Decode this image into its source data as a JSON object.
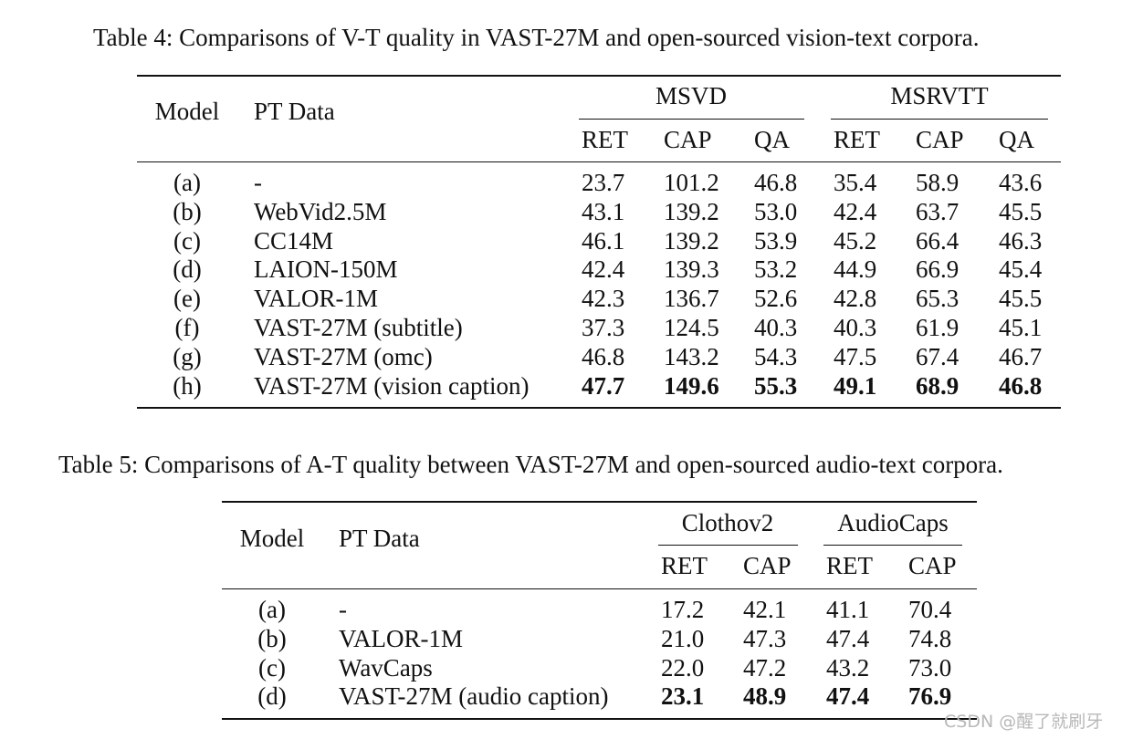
{
  "table4": {
    "caption": "Table 4: Comparisons of V-T quality in VAST-27M and open-sourced vision-text corpora.",
    "col_model": "Model",
    "col_ptdata": "PT Data",
    "group1": "MSVD",
    "group2": "MSRVTT",
    "subcols": [
      "RET",
      "CAP",
      "QA",
      "RET",
      "CAP",
      "QA"
    ],
    "rows": [
      {
        "id": "(a)",
        "data": "-",
        "values": [
          "23.7",
          "101.2",
          "46.8",
          "35.4",
          "58.9",
          "43.6"
        ],
        "bold": false
      },
      {
        "id": "(b)",
        "data": "WebVid2.5M",
        "values": [
          "43.1",
          "139.2",
          "53.0",
          "42.4",
          "63.7",
          "45.5"
        ],
        "bold": false
      },
      {
        "id": "(c)",
        "data": "CC14M",
        "values": [
          "46.1",
          "139.2",
          "53.9",
          "45.2",
          "66.4",
          "46.3"
        ],
        "bold": false
      },
      {
        "id": "(d)",
        "data": "LAION-150M",
        "values": [
          "42.4",
          "139.3",
          "53.2",
          "44.9",
          "66.9",
          "45.4"
        ],
        "bold": false
      },
      {
        "id": "(e)",
        "data": "VALOR-1M",
        "values": [
          "42.3",
          "136.7",
          "52.6",
          "42.8",
          "65.3",
          "45.5"
        ],
        "bold": false
      },
      {
        "id": "(f)",
        "data": "VAST-27M (subtitle)",
        "values": [
          "37.3",
          "124.5",
          "40.3",
          "40.3",
          "61.9",
          "45.1"
        ],
        "bold": false
      },
      {
        "id": "(g)",
        "data": "VAST-27M (omc)",
        "values": [
          "46.8",
          "143.2",
          "54.3",
          "47.5",
          "67.4",
          "46.7"
        ],
        "bold": false
      },
      {
        "id": "(h)",
        "data": "VAST-27M (vision caption)",
        "values": [
          "47.7",
          "149.6",
          "55.3",
          "49.1",
          "68.9",
          "46.8"
        ],
        "bold": true
      }
    ]
  },
  "table5": {
    "caption": "Table 5: Comparisons of A-T quality between VAST-27M and open-sourced audio-text corpora.",
    "col_model": "Model",
    "col_ptdata": "PT Data",
    "group1": "Clothov2",
    "group2": "AudioCaps",
    "subcols": [
      "RET",
      "CAP",
      "RET",
      "CAP"
    ],
    "rows": [
      {
        "id": "(a)",
        "data": "-",
        "values": [
          "17.2",
          "42.1",
          "41.1",
          "70.4"
        ],
        "bold": false
      },
      {
        "id": "(b)",
        "data": "VALOR-1M",
        "values": [
          "21.0",
          "47.3",
          "47.4",
          "74.8"
        ],
        "bold": false
      },
      {
        "id": "(c)",
        "data": "WavCaps",
        "values": [
          "22.0",
          "47.2",
          "43.2",
          "73.0"
        ],
        "bold": false
      },
      {
        "id": "(d)",
        "data": "VAST-27M (audio caption)",
        "values": [
          "23.1",
          "48.9",
          "47.4",
          "76.9"
        ],
        "bold": true
      }
    ]
  },
  "watermark": "CSDN @醒了就刷牙"
}
